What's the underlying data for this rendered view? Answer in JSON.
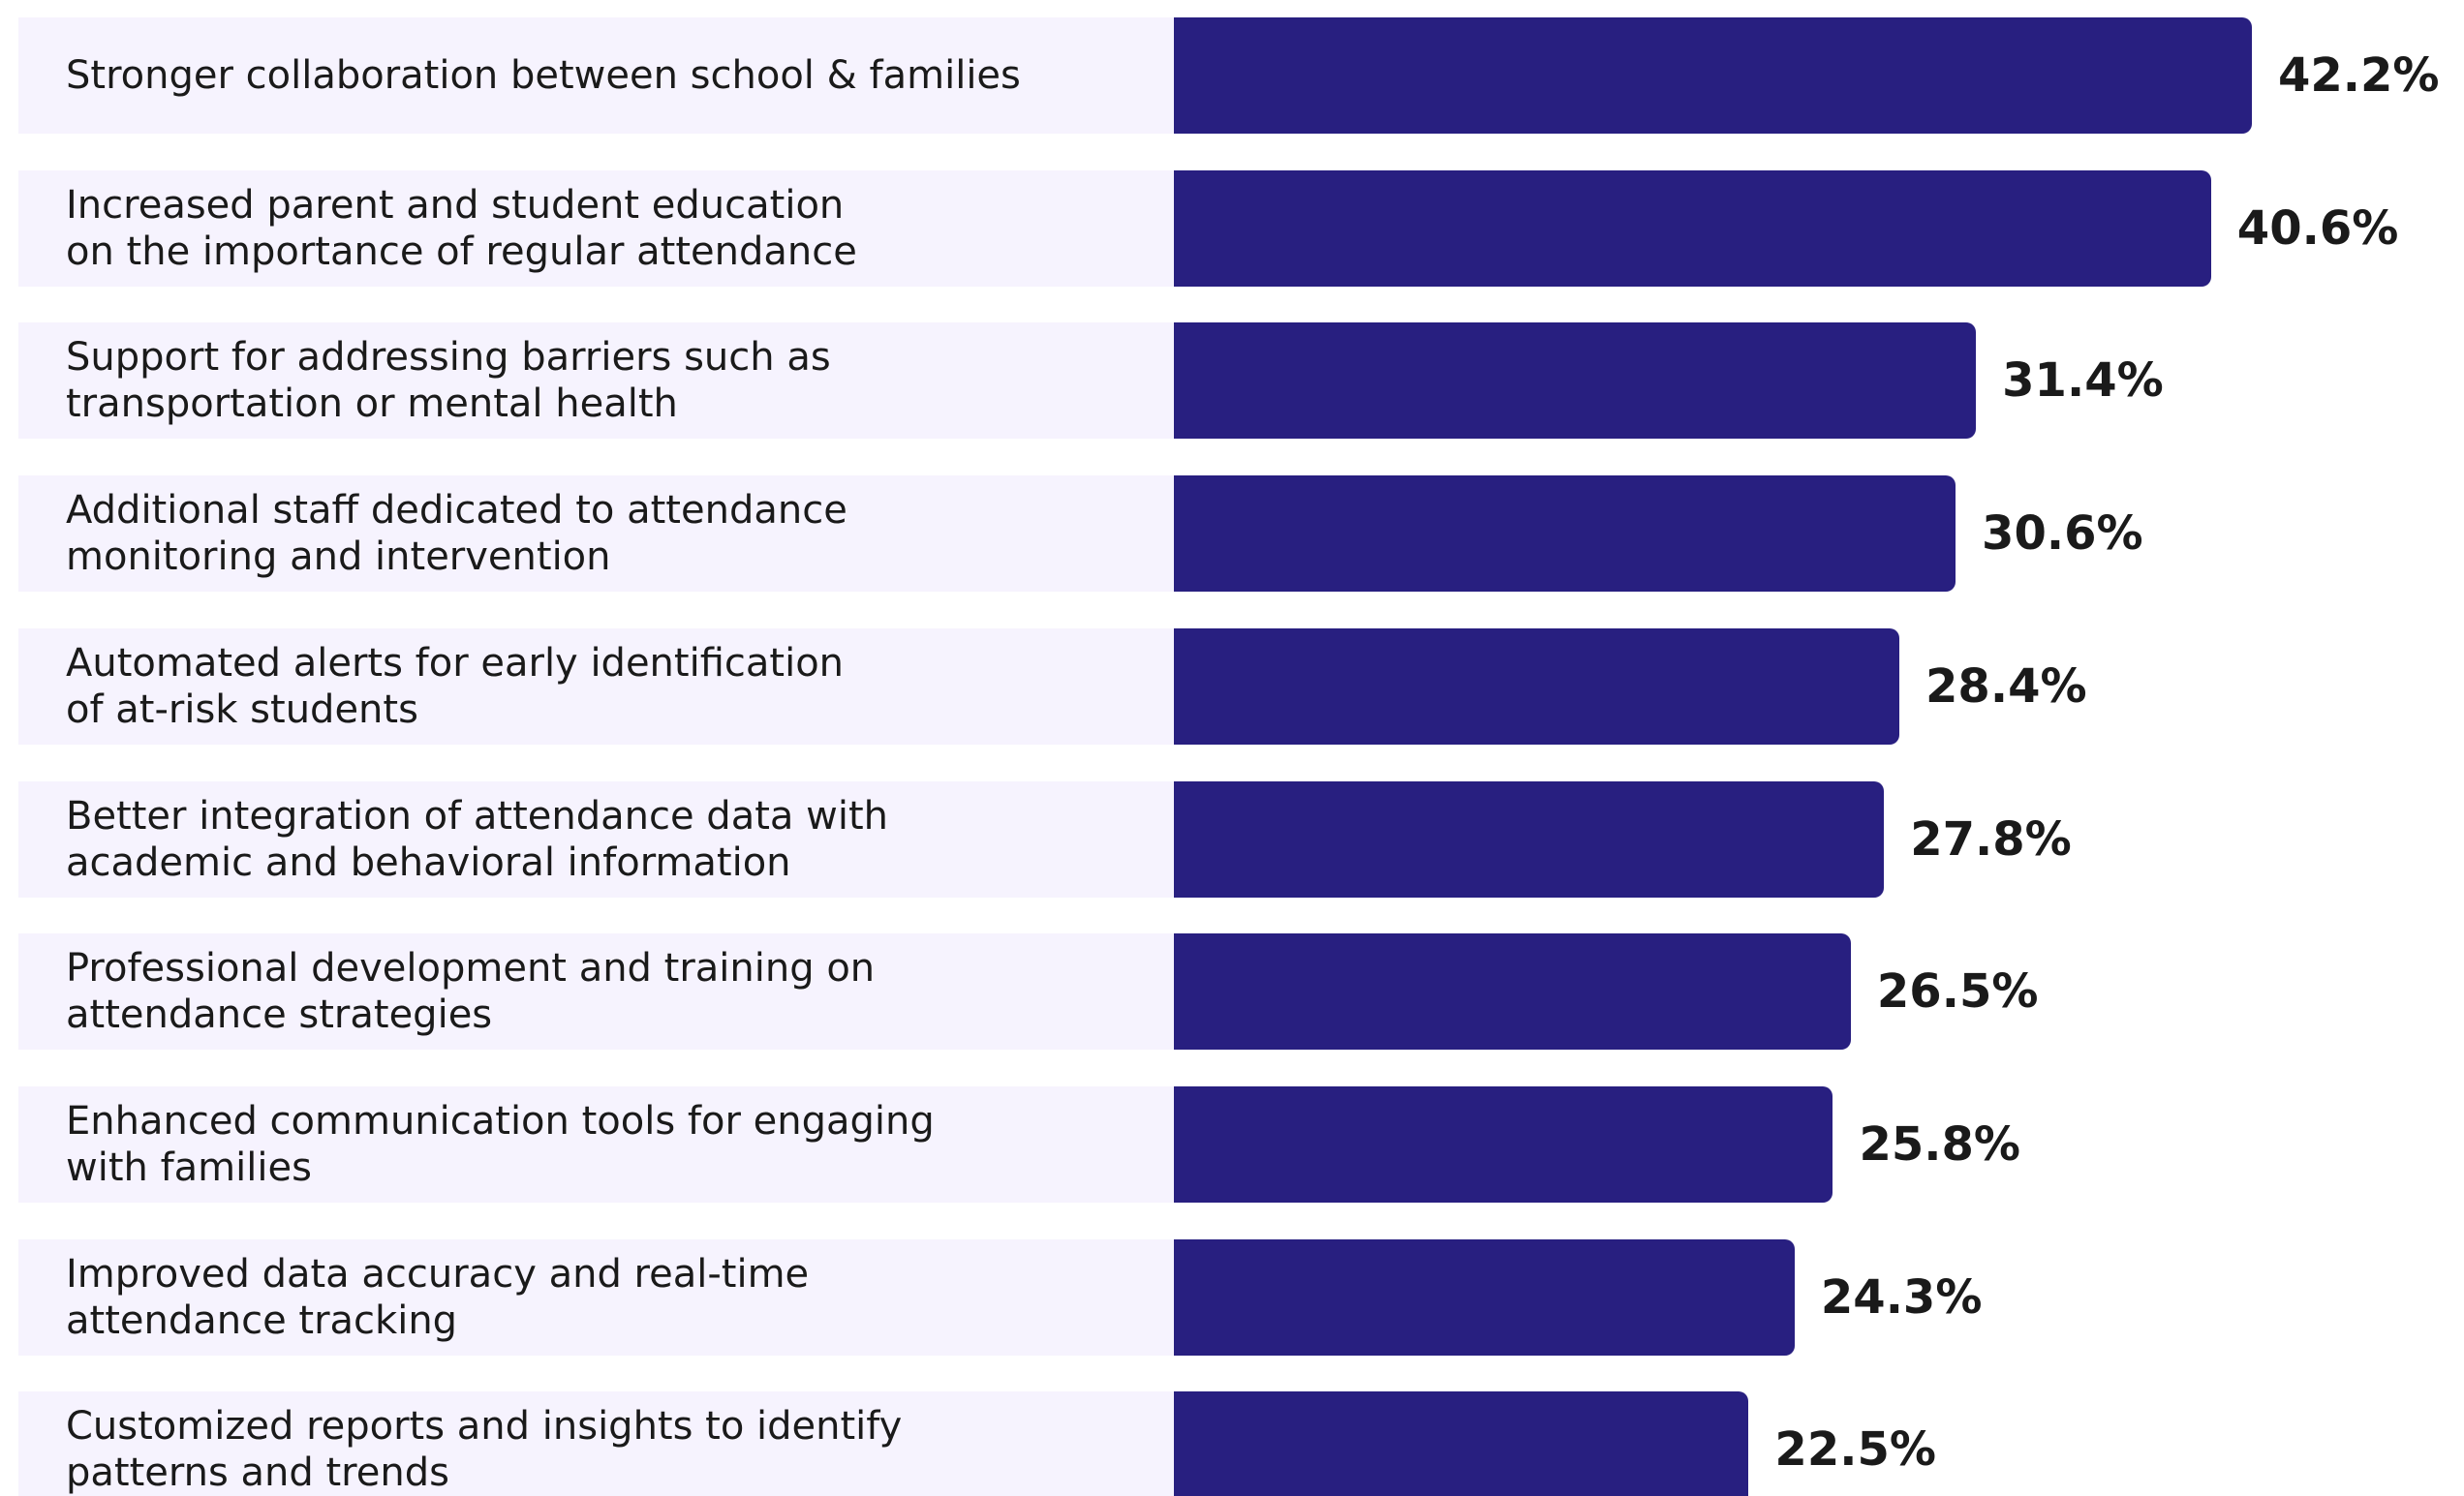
{
  "chart_data": {
    "type": "bar",
    "orientation": "horizontal",
    "categories": [
      "Stronger collaboration between school & families",
      "Increased parent and student education\non the importance of regular attendance",
      "Support for addressing barriers such as\ntransportation or mental health",
      "Additional staff dedicated to attendance\nmonitoring and intervention",
      "Automated alerts for early identification\nof at-risk students",
      "Better integration of attendance data with\nacademic and behavioral information",
      "Professional development and training on\nattendance strategies",
      "Enhanced communication tools for engaging\nwith families",
      "Improved data accuracy and real-time\nattendance tracking",
      "Customized reports and insights to identify\npatterns and trends"
    ],
    "values": [
      42.2,
      40.6,
      31.4,
      30.6,
      28.4,
      27.8,
      26.5,
      25.8,
      24.3,
      22.5
    ],
    "value_labels": [
      "42.2%",
      "40.6%",
      "31.4%",
      "30.6%",
      "28.4%",
      "27.8%",
      "26.5%",
      "25.8%",
      "24.3%",
      "22.5%"
    ],
    "color": "#281f80"
  }
}
